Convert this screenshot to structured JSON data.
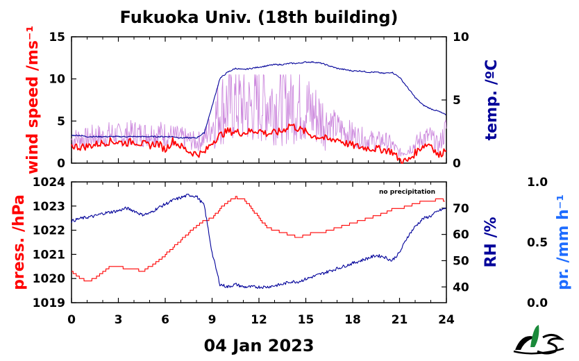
{
  "colors": {
    "wind": "#ff0000",
    "gust": "#cc88dd",
    "temp": "#000099",
    "pressure": "#ff0000",
    "rh": "#000099",
    "precip": "#1e6cff",
    "logo_green": "#1a8a3a"
  },
  "chart_data": [
    {
      "type": "line",
      "title": "Fukuoka Univ. (18th building)",
      "xlabel": "04 Jan 2023",
      "xlim": [
        0,
        24
      ],
      "x_ticks": [
        "0",
        "3",
        "6",
        "9",
        "12",
        "15",
        "18",
        "21",
        "24"
      ],
      "ylabel": "wind speed /ms⁻¹",
      "ylim": [
        0,
        15
      ],
      "y_ticks": [
        "0",
        "5",
        "10",
        "15"
      ],
      "y2label": "temp. /ºC",
      "y2lim": [
        0,
        10
      ],
      "y2_ticks": [
        "0",
        "5",
        "10"
      ],
      "series": [
        {
          "key": "gust",
          "axis": "left",
          "x": [
            0,
            0.5,
            1,
            1.5,
            2,
            2.5,
            3,
            3.5,
            4,
            4.5,
            5,
            5.5,
            6,
            6.5,
            7,
            7.5,
            8,
            8.5,
            9,
            9.5,
            10,
            10.5,
            11,
            11.5,
            12,
            12.5,
            13,
            13.5,
            14,
            14.5,
            15,
            15.5,
            16,
            16.5,
            17,
            17.5,
            18,
            18.5,
            19,
            19.5,
            20,
            20.5,
            21,
            21.5,
            22,
            22.5,
            23,
            23.5,
            24
          ],
          "values": [
            2.8,
            3.0,
            2.9,
            3.3,
            3.1,
            3.5,
            3.3,
            3.4,
            3.6,
            3.4,
            3.5,
            3.6,
            3.4,
            3.2,
            3.0,
            2.8,
            2.5,
            2.9,
            4.5,
            6.5,
            7.0,
            7.2,
            6.8,
            6.5,
            7.0,
            7.4,
            7.1,
            6.8,
            7.3,
            7.0,
            6.5,
            5.9,
            5.3,
            4.8,
            4.2,
            3.8,
            3.4,
            3.0,
            2.8,
            2.6,
            2.7,
            2.2,
            1.2,
            1.5,
            2.2,
            3.0,
            3.1,
            2.0,
            4.2
          ]
        },
        {
          "key": "wind",
          "axis": "left",
          "x": [
            0,
            0.5,
            1,
            1.5,
            2,
            2.5,
            3,
            3.5,
            4,
            4.5,
            5,
            5.5,
            6,
            6.5,
            7,
            7.5,
            8,
            8.5,
            9,
            9.5,
            10,
            10.5,
            11,
            11.5,
            12,
            12.5,
            13,
            13.5,
            14,
            14.5,
            15,
            15.5,
            16,
            16.5,
            17,
            17.5,
            18,
            18.5,
            19,
            19.5,
            20,
            20.5,
            21,
            21.5,
            22,
            22.5,
            23,
            23.5,
            24
          ],
          "values": [
            2.1,
            1.9,
            2.0,
            2.2,
            2.4,
            2.6,
            2.5,
            2.4,
            2.6,
            2.3,
            2.1,
            2.4,
            1.6,
            2.7,
            2.0,
            1.4,
            1.1,
            1.2,
            2.5,
            3.3,
            3.8,
            3.7,
            3.6,
            3.8,
            3.9,
            3.5,
            3.6,
            3.8,
            4.6,
            4.1,
            3.7,
            3.2,
            3.1,
            2.7,
            2.9,
            2.4,
            2.1,
            1.9,
            1.8,
            1.7,
            1.6,
            1.4,
            0.4,
            0.2,
            1.2,
            2.1,
            2.3,
            0.8,
            1.8
          ]
        },
        {
          "key": "temp",
          "axis": "right",
          "x": [
            0,
            0.5,
            1,
            1.5,
            2,
            2.5,
            3,
            3.5,
            4,
            4.5,
            5,
            5.5,
            6,
            6.5,
            7,
            7.5,
            8,
            8.5,
            9,
            9.5,
            10,
            10.5,
            11,
            11.5,
            12,
            12.5,
            13,
            13.5,
            14,
            14.5,
            15,
            15.5,
            16,
            16.5,
            17,
            17.5,
            18,
            18.5,
            19,
            19.5,
            20,
            20.5,
            21,
            21.5,
            22,
            22.5,
            23,
            23.5,
            24
          ],
          "values": [
            2.2,
            2.2,
            2.1,
            2.1,
            2.1,
            2.1,
            2.1,
            2.1,
            2.1,
            2.1,
            2.1,
            2.1,
            2.1,
            2.1,
            2.0,
            2.0,
            2.0,
            2.4,
            4.5,
            6.7,
            7.2,
            7.5,
            7.4,
            7.5,
            7.6,
            7.7,
            7.8,
            7.8,
            7.9,
            7.9,
            8.0,
            8.0,
            7.9,
            7.7,
            7.5,
            7.4,
            7.3,
            7.3,
            7.2,
            7.2,
            7.1,
            7.2,
            6.8,
            6.0,
            5.2,
            4.6,
            4.3,
            4.1,
            3.8
          ]
        }
      ]
    },
    {
      "type": "line",
      "note": "no precipitation",
      "xlabel": "04 Jan 2023",
      "xlim": [
        0,
        24
      ],
      "ylabel": "press. /hPa",
      "ylim": [
        1019,
        1024
      ],
      "y_ticks": [
        "1019",
        "1020",
        "1021",
        "1022",
        "1023",
        "1024"
      ],
      "y2label": "RH /%",
      "y2lim": [
        34,
        80
      ],
      "y2_ticks": [
        "40",
        "50",
        "60",
        "70"
      ],
      "y3label": "pr. /mm h⁻¹",
      "y3lim": [
        0.0,
        1.0
      ],
      "y3_ticks": [
        "0.0",
        "0.5",
        "1.0"
      ],
      "series": [
        {
          "key": "pressure",
          "axis": "left",
          "x": [
            0,
            0.5,
            1,
            1.5,
            2,
            2.5,
            3,
            3.5,
            4,
            4.5,
            5,
            5.5,
            6,
            6.5,
            7,
            7.5,
            8,
            8.5,
            9,
            9.5,
            10,
            10.5,
            11,
            11.5,
            12,
            12.5,
            13,
            13.5,
            14,
            14.5,
            15,
            15.5,
            16,
            16.5,
            17,
            17.5,
            18,
            18.5,
            19,
            19.5,
            20,
            20.5,
            21,
            21.5,
            22,
            22.5,
            23,
            23.5,
            24
          ],
          "values": [
            1020.3,
            1020.0,
            1019.9,
            1020.0,
            1020.3,
            1020.5,
            1020.5,
            1020.4,
            1020.4,
            1020.3,
            1020.5,
            1020.7,
            1021.0,
            1021.3,
            1021.6,
            1021.9,
            1022.2,
            1022.4,
            1022.5,
            1022.9,
            1023.2,
            1023.35,
            1023.3,
            1022.9,
            1022.5,
            1022.1,
            1022.0,
            1021.9,
            1021.8,
            1021.7,
            1021.8,
            1021.9,
            1021.9,
            1022.0,
            1022.1,
            1022.2,
            1022.3,
            1022.4,
            1022.5,
            1022.6,
            1022.7,
            1022.85,
            1022.9,
            1023.0,
            1023.1,
            1023.2,
            1023.2,
            1023.3,
            1023.2
          ]
        },
        {
          "key": "rh",
          "axis": "right",
          "x": [
            0,
            0.5,
            1,
            1.5,
            2,
            2.5,
            3,
            3.5,
            4,
            4.5,
            5,
            5.5,
            6,
            6.5,
            7,
            7.5,
            8,
            8.5,
            9,
            9.5,
            10,
            10.5,
            11,
            11.5,
            12,
            12.5,
            13,
            13.5,
            14,
            14.5,
            15,
            15.5,
            16,
            16.5,
            17,
            17.5,
            18,
            18.5,
            19,
            19.5,
            20,
            20.5,
            21,
            21.5,
            22,
            22.5,
            23,
            23.5,
            24
          ],
          "values": [
            65,
            66,
            66.5,
            67,
            68,
            68.5,
            69,
            70,
            69,
            67.5,
            68,
            70,
            71.5,
            73,
            74,
            75,
            74.5,
            71,
            53,
            41,
            40,
            41,
            40,
            40,
            40,
            40,
            40.5,
            41,
            42,
            42,
            43,
            44,
            45,
            46,
            47,
            48,
            49,
            50,
            51,
            52,
            51.5,
            50,
            53,
            59,
            63,
            66,
            67,
            69,
            70
          ]
        }
      ]
    }
  ]
}
